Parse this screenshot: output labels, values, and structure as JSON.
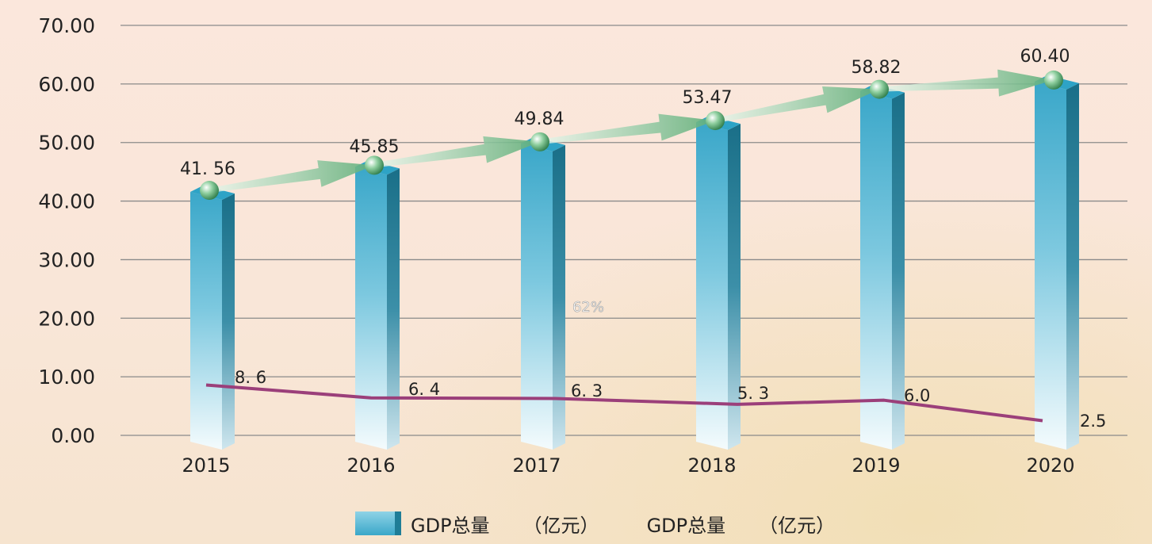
{
  "chart_data": {
    "type": "bar",
    "categories": [
      "2015",
      "2016",
      "2017",
      "2018",
      "2019",
      "2020"
    ],
    "series": [
      {
        "type": "bar",
        "values": [
          41.56,
          45.85,
          49.84,
          53.47,
          58.82,
          60.4
        ],
        "labels": [
          "41. 56",
          "45.85",
          "49.84",
          "53.47",
          "58.82",
          "60.40"
        ],
        "color": "#3aa7c9"
      },
      {
        "type": "line",
        "values": [
          8.6,
          6.4,
          6.3,
          5.3,
          6.0,
          2.5
        ],
        "labels": [
          "8. 6",
          "6. 4",
          "6. 3",
          "5. 3",
          "6.0",
          "2.5"
        ],
        "color": "#9b3f7a"
      }
    ],
    "y_ticks": [
      "0.00",
      "10.00",
      "20.00",
      "30.00",
      "40.00",
      "50.00",
      "60.00",
      "70.00"
    ],
    "ylim": [
      0,
      70
    ],
    "grid": true,
    "annotation": "62%",
    "legend": {
      "placement": "bottom",
      "items": [
        {
          "label": "GDP总量",
          "unit": "（亿元）"
        },
        {
          "label": "GDP总量",
          "unit": "（亿元）"
        }
      ]
    },
    "colors": {
      "bar_front": "#3aa7c9",
      "bar_side": "#1f7d97",
      "trend_arrow": "#6fbf8a",
      "growth_line": "#9b3f7a"
    }
  }
}
